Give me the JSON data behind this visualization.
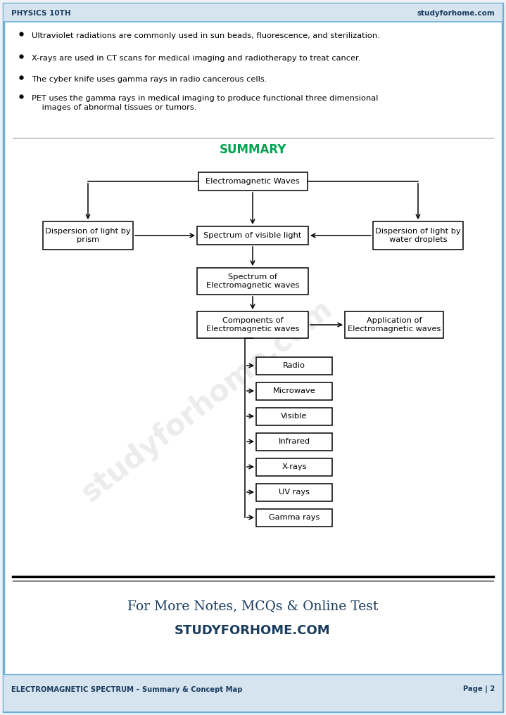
{
  "bg_color": "#eef2f7",
  "border_color": "#6baed6",
  "header_bg": "#d6e4f0",
  "header_text_left": "PHYSICS 10TH",
  "header_text_right": "studyforhome.com",
  "header_color": "#1a3c5e",
  "bullet_points": [
    "Ultraviolet radiations are commonly used in sun beads, fluorescence, and sterilization.",
    "X-rays are used in CT scans for medical imaging and radiotherapy to treat cancer.",
    "The cyber knife uses gamma rays in radio cancerous cells.",
    "PET uses the gamma rays in medical imaging to produce functional three dimensional\n    images of abnormal tissues or tumors."
  ],
  "summary_title": "SUMMARY",
  "summary_color": "#00a550",
  "footer_left": "ELECTROMAGNETIC SPECTRUM – Summary & Concept Map",
  "footer_right": "Page | 2",
  "footer_color": "#1a3c5e",
  "bottom_line1_parts": [
    "F",
    "or ",
    "M",
    "ore ",
    "N",
    "otes, ",
    "MCQ",
    "s & ",
    "O",
    "nline ",
    "T",
    "est"
  ],
  "bottom_line1_caps": [
    true,
    false,
    true,
    false,
    true,
    false,
    false,
    false,
    true,
    false,
    true,
    false
  ],
  "bottom_line2": "STUDYFORHOME.COM",
  "bottom_color": "#1a3c5e",
  "watermark": "studyforhome.com"
}
